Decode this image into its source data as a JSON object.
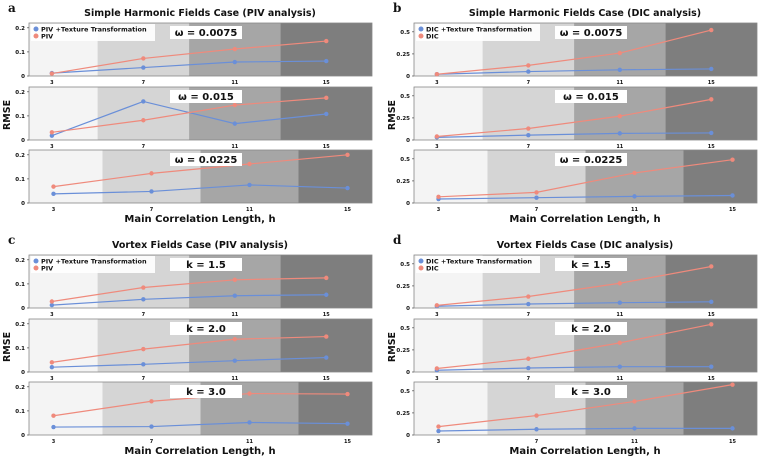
{
  "colors": {
    "blue": "#6a8fd8",
    "red": "#ef8a7c",
    "bands": [
      "#f4f4f4",
      "#d5d5d5",
      "#a6a6a6",
      "#7e7e7e"
    ]
  },
  "chart_data": [
    {
      "type": "line",
      "letter": "a",
      "title": "Simple Harmonic Fields Case (PIV analysis)",
      "xlabel": "Main Correlation Length, h",
      "ylabel": "RMSE",
      "x": [
        3,
        7,
        11,
        15
      ],
      "ylim": [
        0,
        0.22
      ],
      "yticks": [
        0,
        0.1,
        0.2
      ],
      "ytick_labels": [
        "0",
        "0.1",
        "0.2"
      ],
      "legend": [
        "PIV +Texture Transformation",
        "PIV"
      ],
      "legend_placement": "top-left",
      "subplots": [
        {
          "label": "ω = 0.0075",
          "xlim": [
            2,
            17
          ],
          "series": [
            {
              "name": "PIV +Texture Transformation",
              "values": [
                0.012,
                0.035,
                0.058,
                0.062
              ]
            },
            {
              "name": "PIV",
              "values": [
                0.01,
                0.073,
                0.112,
                0.145
              ]
            }
          ]
        },
        {
          "label": "ω = 0.015",
          "xlim": [
            2,
            17
          ],
          "series": [
            {
              "name": "PIV +Texture Transformation",
              "values": [
                0.018,
                0.16,
                0.068,
                0.108
              ]
            },
            {
              "name": "PIV",
              "values": [
                0.032,
                0.082,
                0.145,
                0.175
              ]
            }
          ]
        },
        {
          "label": "ω = 0.0225",
          "xlim": [
            2,
            16
          ],
          "series": [
            {
              "name": "PIV +Texture Transformation",
              "values": [
                0.038,
                0.048,
                0.075,
                0.062
              ]
            },
            {
              "name": "PIV",
              "values": [
                0.068,
                0.123,
                0.162,
                0.2
              ]
            }
          ]
        }
      ]
    },
    {
      "type": "line",
      "letter": "b",
      "title": "Simple Harmonic Fields Case (DIC analysis)",
      "xlabel": "Main Correlation Length, h",
      "ylabel": "RMSE",
      "x": [
        3,
        7,
        11,
        15
      ],
      "ylim": [
        0,
        0.6
      ],
      "yticks": [
        0,
        0.25,
        0.5
      ],
      "ytick_labels": [
        "0",
        "0.25",
        "0.5"
      ],
      "legend": [
        "DIC +Texture Transformation",
        "DIC"
      ],
      "legend_placement": "top-left",
      "subplots": [
        {
          "label": "ω = 0.0075",
          "xlim": [
            2,
            17
          ],
          "series": [
            {
              "name": "DIC +Texture Transformation",
              "values": [
                0.02,
                0.05,
                0.07,
                0.08
              ]
            },
            {
              "name": "DIC",
              "values": [
                0.02,
                0.12,
                0.26,
                0.52
              ]
            }
          ]
        },
        {
          "label": "ω = 0.015",
          "xlim": [
            2,
            17
          ],
          "series": [
            {
              "name": "DIC +Texture Transformation",
              "values": [
                0.03,
                0.055,
                0.075,
                0.08
              ]
            },
            {
              "name": "DIC",
              "values": [
                0.04,
                0.13,
                0.27,
                0.46
              ]
            }
          ]
        },
        {
          "label": "ω = 0.0225",
          "xlim": [
            2,
            16
          ],
          "series": [
            {
              "name": "DIC +Texture Transformation",
              "values": [
                0.045,
                0.06,
                0.075,
                0.085
              ]
            },
            {
              "name": "DIC",
              "values": [
                0.07,
                0.12,
                0.34,
                0.49
              ]
            }
          ]
        }
      ]
    },
    {
      "type": "line",
      "letter": "c",
      "title": "Vortex Fields Case (PIV analysis)",
      "xlabel": "Main Correlation Length, h",
      "ylabel": "RMSE",
      "x": [
        3,
        7,
        11,
        15
      ],
      "ylim": [
        0,
        0.22
      ],
      "yticks": [
        0,
        0.1,
        0.2
      ],
      "ytick_labels": [
        "0",
        "0.1",
        "0.2"
      ],
      "legend": [
        "PIV +Texture Transformation",
        "PIV"
      ],
      "legend_placement": "top-left",
      "subplots": [
        {
          "label": "k = 1.5",
          "xlim": [
            2,
            17
          ],
          "series": [
            {
              "name": "PIV +Texture Transformation",
              "values": [
                0.012,
                0.036,
                0.051,
                0.055
              ]
            },
            {
              "name": "PIV",
              "values": [
                0.027,
                0.085,
                0.117,
                0.125
              ]
            }
          ]
        },
        {
          "label": "k = 2.0",
          "xlim": [
            2,
            17
          ],
          "series": [
            {
              "name": "PIV +Texture Transformation",
              "values": [
                0.02,
                0.032,
                0.047,
                0.06
              ]
            },
            {
              "name": "PIV",
              "values": [
                0.04,
                0.095,
                0.136,
                0.147
              ]
            }
          ]
        },
        {
          "label": "k = 3.0",
          "xlim": [
            2,
            16
          ],
          "series": [
            {
              "name": "PIV +Texture Transformation",
              "values": [
                0.033,
                0.035,
                0.052,
                0.047
              ]
            },
            {
              "name": "PIV",
              "values": [
                0.08,
                0.14,
                0.172,
                0.17
              ]
            }
          ]
        }
      ]
    },
    {
      "type": "line",
      "letter": "d",
      "title": "Vortex Fields Case (DIC analysis)",
      "xlabel": "Main Correlation Length, h",
      "ylabel": "RMSE",
      "x": [
        3,
        7,
        11,
        15
      ],
      "ylim": [
        0,
        0.6
      ],
      "yticks": [
        0,
        0.25,
        0.5
      ],
      "ytick_labels": [
        "0",
        "0.25",
        "0.5"
      ],
      "legend": [
        "DIC +Texture Transformation",
        "DIC"
      ],
      "legend_placement": "top-left",
      "subplots": [
        {
          "label": "k = 1.5",
          "xlim": [
            2,
            17
          ],
          "series": [
            {
              "name": "DIC +Texture Transformation",
              "values": [
                0.02,
                0.045,
                0.06,
                0.07
              ]
            },
            {
              "name": "DIC",
              "values": [
                0.03,
                0.13,
                0.28,
                0.47
              ]
            }
          ]
        },
        {
          "label": "k = 2.0",
          "xlim": [
            2,
            17
          ],
          "series": [
            {
              "name": "DIC +Texture Transformation",
              "values": [
                0.02,
                0.045,
                0.06,
                0.06
              ]
            },
            {
              "name": "DIC",
              "values": [
                0.04,
                0.15,
                0.33,
                0.54
              ]
            }
          ]
        },
        {
          "label": "k = 3.0",
          "xlim": [
            2,
            16
          ],
          "series": [
            {
              "name": "DIC +Texture Transformation",
              "values": [
                0.045,
                0.065,
                0.075,
                0.075
              ]
            },
            {
              "name": "DIC",
              "values": [
                0.095,
                0.22,
                0.38,
                0.57
              ]
            }
          ]
        }
      ]
    }
  ]
}
